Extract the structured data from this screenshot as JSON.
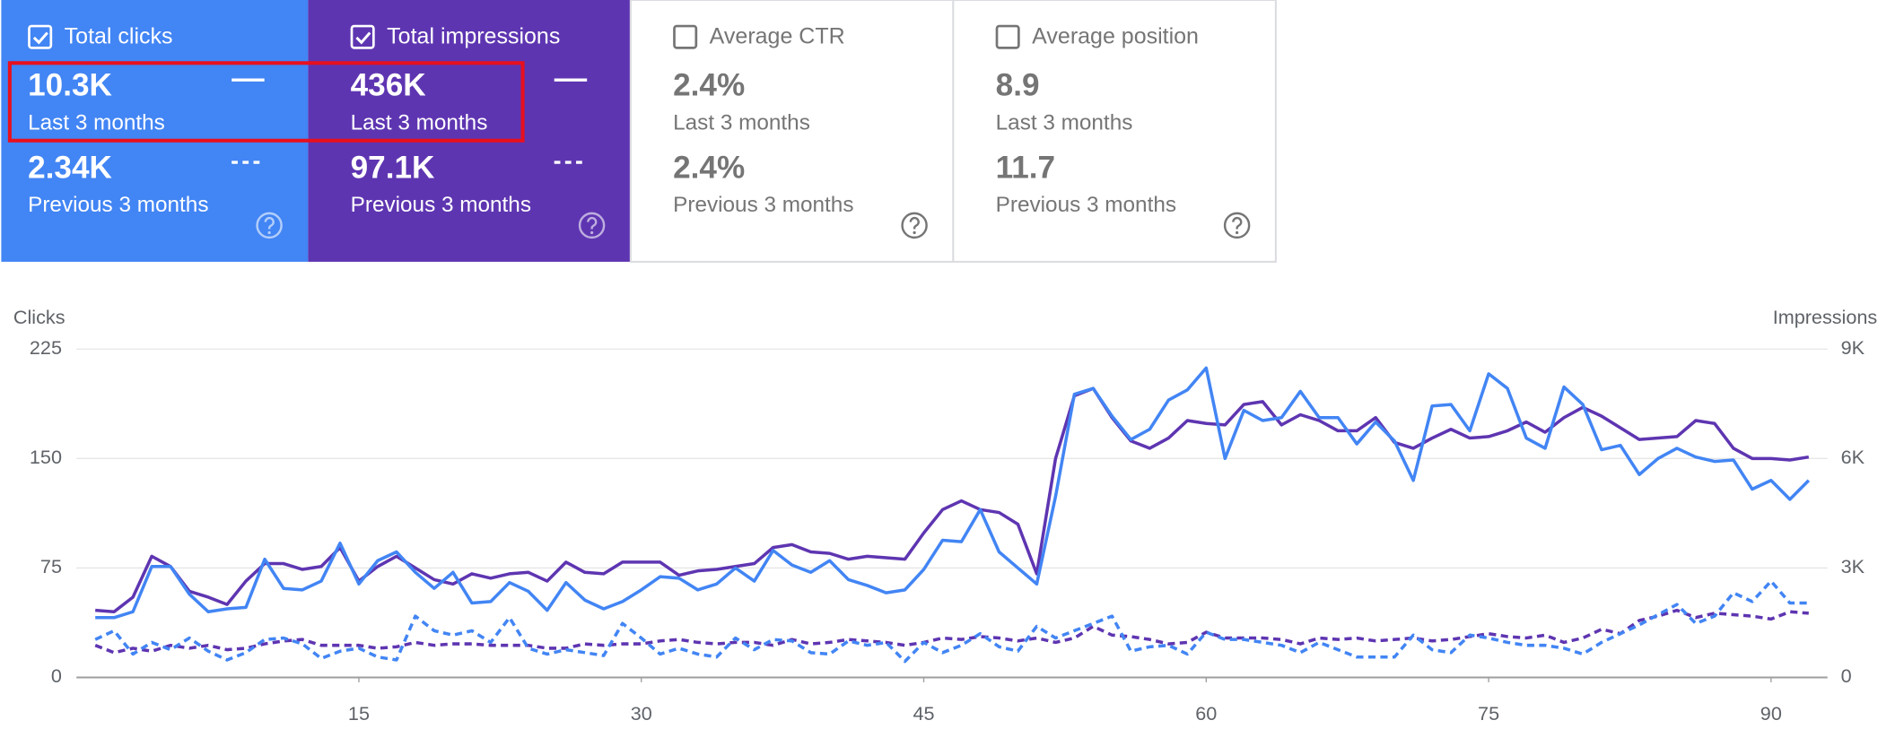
{
  "cards": [
    {
      "label": "Total clicks",
      "checked": true,
      "color": "#4285f4",
      "value": "10.3K",
      "value_period": "Last 3 months",
      "previous": "2.34K",
      "previous_period": "Previous 3 months"
    },
    {
      "label": "Total impressions",
      "checked": true,
      "color": "#5e35b1",
      "value": "436K",
      "value_period": "Last 3 months",
      "previous": "97.1K",
      "previous_period": "Previous 3 months"
    },
    {
      "label": "Average CTR",
      "checked": false,
      "color": "#ffffff",
      "value": "2.4%",
      "value_period": "Last 3 months",
      "previous": "2.4%",
      "previous_period": "Previous 3 months"
    },
    {
      "label": "Average position",
      "checked": false,
      "color": "#ffffff",
      "value": "8.9",
      "value_period": "Last 3 months",
      "previous": "11.7",
      "previous_period": "Previous 3 months"
    }
  ],
  "chart_data": {
    "type": "line",
    "y_label": "Clicks",
    "y2_label": "Impressions",
    "x": [
      1,
      2,
      3,
      4,
      5,
      6,
      7,
      8,
      9,
      10,
      11,
      12,
      13,
      14,
      15,
      16,
      17,
      18,
      19,
      20,
      21,
      22,
      23,
      24,
      25,
      26,
      27,
      28,
      29,
      30,
      31,
      32,
      33,
      34,
      35,
      36,
      37,
      38,
      39,
      40,
      41,
      42,
      43,
      44,
      45,
      46,
      47,
      48,
      49,
      50,
      51,
      52,
      53,
      54,
      55,
      56,
      57,
      58,
      59,
      60,
      61,
      62,
      63,
      64,
      65,
      66,
      67,
      68,
      69,
      70,
      71,
      72,
      73,
      74,
      75,
      76,
      77,
      78,
      79,
      80,
      81,
      82,
      83,
      84,
      85,
      86,
      87,
      88,
      89,
      90,
      91,
      92
    ],
    "xlim": [
      0,
      93
    ],
    "xticks": [
      15,
      30,
      45,
      60,
      75,
      90
    ],
    "ylim": [
      0,
      225
    ],
    "yticks": [
      0,
      75,
      150,
      225
    ],
    "y2lim": [
      0,
      9000
    ],
    "y2ticks": [
      0,
      {
        "value": 3000,
        "label": "3K"
      },
      {
        "value": 6000,
        "label": "6K"
      },
      {
        "value": 9000,
        "label": "9K"
      }
    ],
    "grid": true,
    "series": [
      {
        "color": "#5e35b1",
        "axis": "y2",
        "dashed": false,
        "values": [
          1840,
          1800,
          2200,
          3320,
          3040,
          2360,
          2200,
          2000,
          2640,
          3120,
          3120,
          2960,
          3040,
          3560,
          2640,
          3040,
          3320,
          3000,
          2680,
          2560,
          2840,
          2720,
          2840,
          2880,
          2640,
          3160,
          2880,
          2840,
          3160,
          3160,
          3160,
          2800,
          2920,
          2960,
          3040,
          3120,
          3560,
          3640,
          3440,
          3400,
          3240,
          3320,
          3280,
          3240,
          3960,
          4600,
          4840,
          4600,
          4520,
          4200,
          2840,
          6000,
          7720,
          7920,
          7120,
          6480,
          6280,
          6560,
          7040,
          6960,
          6920,
          7480,
          7560,
          6920,
          7200,
          7040,
          6760,
          6760,
          7120,
          6440,
          6280,
          6560,
          6800,
          6560,
          6600,
          6760,
          7000,
          6720,
          7120,
          7400,
          7160,
          6840,
          6520,
          6560,
          6600,
          7040,
          6960,
          6280,
          6000,
          6000,
          5960,
          6040
        ]
      },
      {
        "color": "#4285f4",
        "axis": "y",
        "dashed": false,
        "values": [
          41,
          41,
          45,
          76,
          76,
          57,
          45,
          47,
          48,
          81,
          61,
          60,
          66,
          92,
          64,
          80,
          86,
          72,
          61,
          72,
          51,
          52,
          65,
          59,
          46,
          65,
          53,
          47,
          52,
          60,
          69,
          68,
          60,
          64,
          75,
          66,
          87,
          77,
          72,
          80,
          67,
          63,
          58,
          60,
          74,
          94,
          93,
          115,
          86,
          75,
          64,
          124,
          194,
          198,
          179,
          163,
          170,
          190,
          197,
          212,
          150,
          183,
          176,
          178,
          196,
          178,
          178,
          160,
          175,
          162,
          135,
          186,
          187,
          169,
          208,
          198,
          164,
          157,
          199,
          187,
          156,
          159,
          139,
          150,
          157,
          151,
          148,
          149,
          129,
          135,
          122,
          135
        ]
      },
      {
        "color": "#5e35b1",
        "axis": "y2",
        "dashed": true,
        "values": [
          880,
          680,
          800,
          720,
          880,
          800,
          880,
          760,
          800,
          920,
          1000,
          1040,
          880,
          880,
          880,
          800,
          840,
          960,
          880,
          920,
          920,
          880,
          880,
          880,
          800,
          800,
          920,
          880,
          920,
          920,
          1000,
          1040,
          960,
          920,
          960,
          960,
          880,
          1040,
          920,
          960,
          1040,
          1000,
          960,
          880,
          960,
          1080,
          1040,
          1120,
          1080,
          1000,
          1080,
          960,
          1080,
          1400,
          1160,
          1120,
          1040,
          920,
          960,
          1240,
          1080,
          1080,
          1080,
          1040,
          920,
          1080,
          1040,
          1080,
          1000,
          1040,
          1080,
          1000,
          1040,
          1120,
          1200,
          1120,
          1080,
          1160,
          960,
          1080,
          1320,
          1200,
          1560,
          1680,
          1840,
          1640,
          1760,
          1720,
          1680,
          1600,
          1800,
          1760
        ]
      },
      {
        "color": "#4285f4",
        "axis": "y",
        "dashed": true,
        "values": [
          26,
          32,
          16,
          24,
          19,
          27,
          18,
          12,
          17,
          26,
          27,
          23,
          13,
          18,
          20,
          14,
          12,
          42,
          32,
          29,
          32,
          24,
          41,
          20,
          16,
          19,
          17,
          15,
          37,
          27,
          16,
          20,
          16,
          14,
          27,
          19,
          26,
          25,
          17,
          16,
          25,
          22,
          24,
          11,
          24,
          17,
          22,
          30,
          21,
          18,
          35,
          27,
          32,
          37,
          42,
          18,
          21,
          22,
          16,
          31,
          26,
          26,
          24,
          22,
          17,
          24,
          19,
          14,
          14,
          14,
          29,
          19,
          17,
          29,
          27,
          24,
          22,
          22,
          20,
          16,
          24,
          30,
          36,
          43,
          50,
          37,
          42,
          58,
          52,
          66,
          51,
          51
        ]
      }
    ]
  }
}
